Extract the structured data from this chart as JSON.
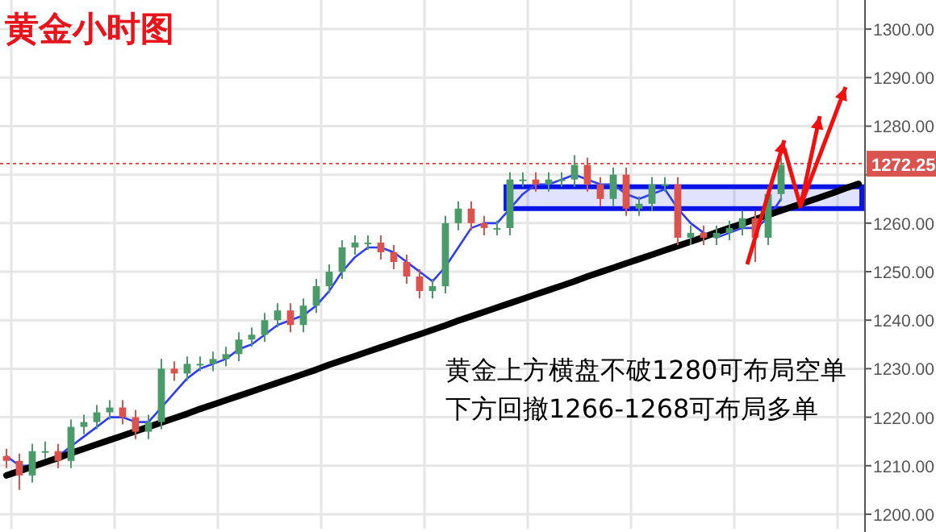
{
  "chart_data": {
    "type": "candlestick",
    "title": "黄金小时图",
    "categories": [
      null,
      null,
      null,
      null,
      null,
      null,
      null,
      null,
      null,
      null,
      null,
      null,
      null,
      null,
      null,
      null,
      null,
      null,
      null,
      null,
      null,
      null,
      null,
      null,
      null,
      null,
      null,
      null,
      null,
      null,
      null,
      null,
      null,
      null,
      null,
      null,
      null,
      null,
      null,
      null,
      null,
      null,
      null,
      null,
      null,
      null,
      null,
      null,
      null,
      null,
      null,
      null,
      null,
      null,
      null,
      null,
      null,
      null,
      null,
      null,
      null,
      null,
      null,
      null,
      null,
      null,
      null
    ],
    "ohlc": [
      [
        1212,
        1213.5,
        1209.5,
        1211
      ],
      [
        1211,
        1212.5,
        1205,
        1208
      ],
      [
        1208,
        1214.5,
        1206.5,
        1213
      ],
      [
        1213,
        1215,
        1211.5,
        1213
      ],
      [
        1213,
        1214.5,
        1209.5,
        1211
      ],
      [
        1211,
        1219.5,
        1209.5,
        1218
      ],
      [
        1218,
        1220.5,
        1216.5,
        1219
      ],
      [
        1219,
        1222.5,
        1217.5,
        1221
      ],
      [
        1221,
        1223.5,
        1219.5,
        1222
      ],
      [
        1222,
        1223.5,
        1218.5,
        1220
      ],
      [
        1220,
        1221.5,
        1215.5,
        1217
      ],
      [
        1217,
        1220.5,
        1215.5,
        1219
      ],
      [
        1219,
        1232,
        1217.5,
        1230
      ],
      [
        1230,
        1231.5,
        1227.5,
        1229
      ],
      [
        1229,
        1232.5,
        1227.5,
        1231
      ],
      [
        1231,
        1232.5,
        1229.5,
        1231
      ],
      [
        1231,
        1233.5,
        1229.5,
        1232
      ],
      [
        1232,
        1234.5,
        1230.5,
        1233
      ],
      [
        1233,
        1237.5,
        1231.5,
        1236
      ],
      [
        1236,
        1238.5,
        1234.5,
        1237
      ],
      [
        1237,
        1241.5,
        1235.5,
        1240
      ],
      [
        1240,
        1243.5,
        1238.5,
        1242
      ],
      [
        1242,
        1243.5,
        1237.5,
        1239
      ],
      [
        1239,
        1244.5,
        1237.5,
        1243
      ],
      [
        1243,
        1248.5,
        1241.5,
        1247
      ],
      [
        1247,
        1251.5,
        1245.5,
        1250
      ],
      [
        1250,
        1256.5,
        1248.5,
        1255
      ],
      [
        1255,
        1257.5,
        1253.5,
        1256
      ],
      [
        1256,
        1257.5,
        1254.5,
        1256
      ],
      [
        1256,
        1257.5,
        1252.5,
        1254
      ],
      [
        1254,
        1255.5,
        1250.5,
        1252
      ],
      [
        1252,
        1253.5,
        1247.5,
        1249
      ],
      [
        1249,
        1250.5,
        1244.5,
        1246
      ],
      [
        1246,
        1248.5,
        1244.5,
        1247
      ],
      [
        1247,
        1261.5,
        1245.5,
        1260
      ],
      [
        1260,
        1264.5,
        1258.5,
        1263
      ],
      [
        1263,
        1264.5,
        1258.5,
        1260
      ],
      [
        1260,
        1261.5,
        1257.5,
        1259
      ],
      [
        1259,
        1260.5,
        1257.5,
        1259
      ],
      [
        1259,
        1270.5,
        1257.5,
        1269
      ],
      [
        1269,
        1270.5,
        1267.5,
        1269
      ],
      [
        1269,
        1270.5,
        1266.5,
        1268
      ],
      [
        1268,
        1270.5,
        1266.5,
        1269
      ],
      [
        1269,
        1270.5,
        1267.5,
        1269
      ],
      [
        1269,
        1274,
        1267.5,
        1272
      ],
      [
        1272,
        1273.5,
        1266.5,
        1268
      ],
      [
        1268,
        1269.5,
        1263.5,
        1265
      ],
      [
        1265,
        1271.5,
        1263.5,
        1270
      ],
      [
        1270,
        1271.5,
        1261.5,
        1263
      ],
      [
        1263,
        1265.5,
        1261.5,
        1264
      ],
      [
        1264,
        1269.5,
        1262.5,
        1268
      ],
      [
        1268,
        1269.5,
        1266.5,
        1268
      ],
      [
        1268,
        1269.5,
        1255.5,
        1257
      ],
      [
        1257,
        1259.5,
        1255.5,
        1258
      ],
      [
        1258,
        1259.5,
        1255.5,
        1257
      ],
      [
        1257,
        1259.5,
        1255.5,
        1258
      ],
      [
        1258,
        1260.5,
        1256.5,
        1259
      ],
      [
        1259,
        1262.5,
        1257.5,
        1261
      ],
      [
        1261,
        1262.5,
        1252,
        1257
      ],
      [
        1257,
        1267.5,
        1255.5,
        1266
      ],
      [
        1266,
        1273.5,
        1264.5,
        1272
      ],
      null,
      null,
      null,
      null,
      null,
      null
    ],
    "series": [
      {
        "type": "line",
        "color": "#2f3df0",
        "values": [
          1212,
          1210,
          1210,
          1211,
          1212,
          1214,
          1216,
          1218,
          1220,
          1220,
          1219,
          1219,
          1222,
          1225,
          1228,
          1230,
          1231,
          1232,
          1234,
          1235,
          1237,
          1239,
          1240,
          1241,
          1243,
          1246,
          1250,
          1253,
          1255,
          1255,
          1254,
          1252,
          1250,
          1248,
          1251,
          1255,
          1259,
          1260,
          1260,
          1263,
          1266,
          1268,
          1268,
          1269,
          1270,
          1269,
          1268,
          1268,
          1266,
          1265,
          1266,
          1267,
          1263,
          1260,
          1258,
          1257,
          1258,
          1259,
          1259,
          1261,
          1265,
          null,
          null,
          null,
          null,
          null,
          null
        ]
      },
      {
        "type": "line",
        "color": "#000000",
        "values": [
          1208.0,
          1208.9,
          1209.8,
          1210.7,
          1211.6,
          1212.6,
          1213.5,
          1214.4,
          1215.3,
          1216.2,
          1217.1,
          1218.0,
          1218.9,
          1219.8,
          1220.7,
          1221.7,
          1222.6,
          1223.5,
          1224.4,
          1225.3,
          1226.2,
          1227.1,
          1228.0,
          1228.9,
          1229.8,
          1230.8,
          1231.7,
          1232.6,
          1233.5,
          1234.4,
          1235.3,
          1236.2,
          1237.1,
          1238.0,
          1238.9,
          1239.9,
          1240.8,
          1241.7,
          1242.6,
          1243.5,
          1244.4,
          1245.3,
          1246.2,
          1247.1,
          1248.0,
          1249.0,
          1249.9,
          1250.8,
          1251.7,
          1252.6,
          1253.5,
          1254.4,
          1255.3,
          1256.2,
          1257.1,
          1258.1,
          1259.0,
          1259.9,
          1260.8,
          1261.7,
          1262.6,
          1263.5,
          1264.4,
          1265.3,
          1266.2,
          1267.2,
          1268.1
        ]
      }
    ],
    "ylim": [
      1197,
      1306
    ],
    "yticks": [
      {
        "value": 1200,
        "label": "1200.00"
      },
      {
        "value": 1210,
        "label": "1210.00"
      },
      {
        "value": 1220,
        "label": "1220.00"
      },
      {
        "value": 1230,
        "label": "1230.00"
      },
      {
        "value": 1240,
        "label": "1240.00"
      },
      {
        "value": 1250,
        "label": "1250.00"
      },
      {
        "value": 1260,
        "label": "1260.00"
      },
      {
        "value": 1270,
        "label": null
      },
      {
        "value": 1280,
        "label": "1280.00"
      },
      {
        "value": 1290,
        "label": "1290.00"
      },
      {
        "value": 1300,
        "label": "1300.00"
      }
    ],
    "ref_lines": [
      {
        "axis": "y",
        "value": 1272.25,
        "label": "1272.25",
        "color": "#d9534f",
        "line_style": "dotted"
      }
    ],
    "bands": [
      {
        "axis": "y",
        "from": 1263,
        "to": 1267.5,
        "color": "#0a14e6"
      }
    ],
    "grid": true,
    "annotations": [
      "黄金上方横盘不破1280可布局空单",
      "下方回撤1266-1268可布局多单"
    ]
  }
}
